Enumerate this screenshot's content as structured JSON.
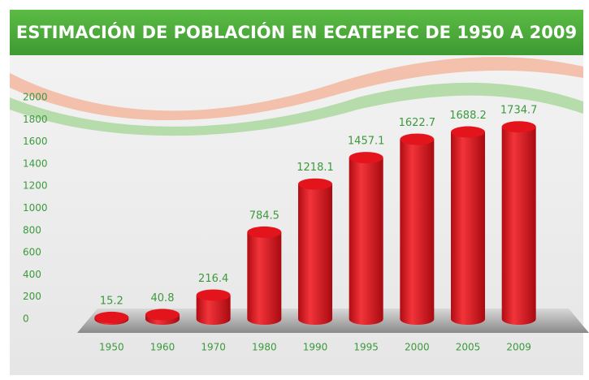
{
  "chart_data": {
    "type": "bar",
    "title": "ESTIMACIÓN DE POBLACIÓN EN ECATEPEC DE 1950 A 2009",
    "categories": [
      "1950",
      "1960",
      "1970",
      "1980",
      "1990",
      "1995",
      "2000",
      "2005",
      "2009"
    ],
    "values": [
      15.2,
      40.8,
      216.4,
      784.5,
      1218.1,
      1457.1,
      1622.7,
      1688.2,
      1734.7
    ],
    "color": "#e3141c",
    "ylim": [
      0,
      2000
    ],
    "yticks": [
      0,
      200,
      400,
      600,
      800,
      1000,
      1200,
      1400,
      1600,
      1800,
      2000
    ]
  }
}
